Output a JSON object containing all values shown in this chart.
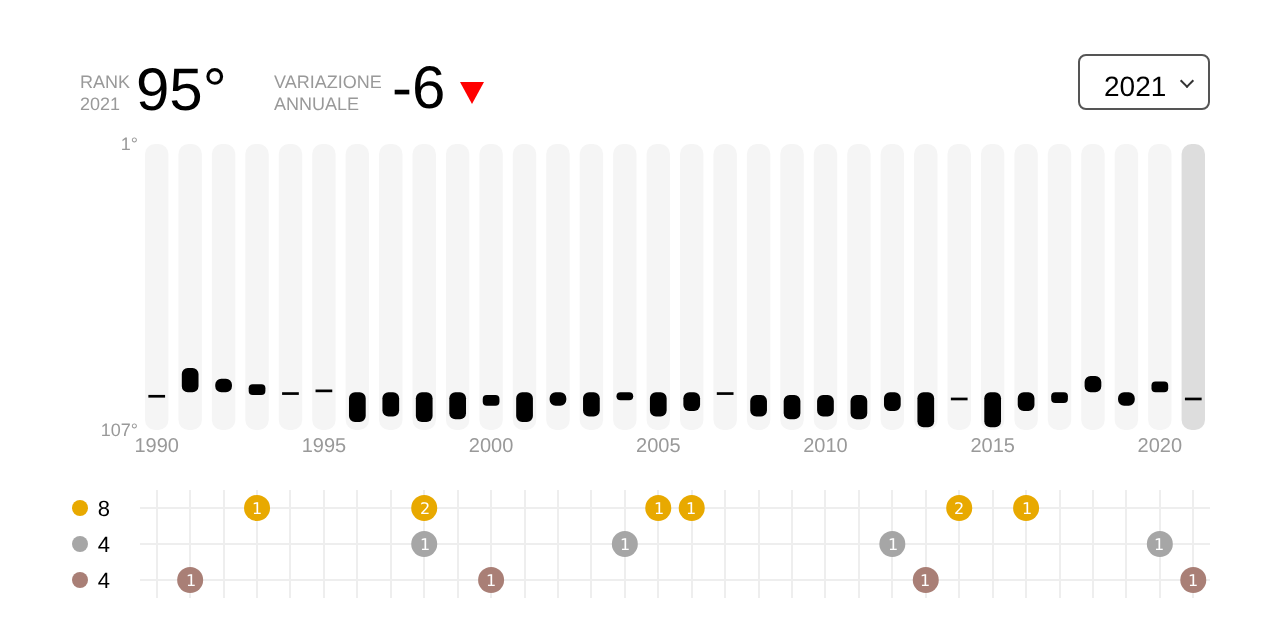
{
  "chart_data": [
    {
      "type": "bar",
      "annotations": [
        "RANK 2021",
        "95°",
        "VARIAZIONE ANNUALE",
        "-6",
        "2021"
      ],
      "x": [
        1990,
        1991,
        1992,
        1993,
        1994,
        1995,
        1996,
        1997,
        1998,
        1999,
        2000,
        2001,
        2002,
        2003,
        2004,
        2005,
        2006,
        2007,
        2008,
        2009,
        2010,
        2011,
        2012,
        2013,
        2014,
        2015,
        2016,
        2017,
        2018,
        2019,
        2020,
        2021
      ],
      "series": [
        {
          "colors": [
            "#f5f5f5",
            "#f5f5f5",
            "#f5f5f5",
            "#f5f5f5",
            "#f5f5f5",
            "#f5f5f5",
            "#f5f5f5",
            "#f5f5f5",
            "#f5f5f5",
            "#f5f5f5",
            "#f5f5f5",
            "#f5f5f5",
            "#f5f5f5",
            "#f5f5f5",
            "#f5f5f5",
            "#f5f5f5",
            "#f5f5f5",
            "#f5f5f5",
            "#f5f5f5",
            "#f5f5f5",
            "#f5f5f5",
            "#f5f5f5",
            "#f5f5f5",
            "#f5f5f5",
            "#f5f5f5",
            "#f5f5f5",
            "#f5f5f5",
            "#f5f5f5",
            "#f5f5f5",
            "#f5f5f5",
            "#f5f5f5",
            "#dddddd"
          ],
          "base": [
            1,
            1,
            1,
            1,
            1,
            1,
            1,
            1,
            1,
            1,
            1,
            1,
            1,
            1,
            1,
            1,
            1,
            1,
            1,
            1,
            1,
            1,
            1,
            1,
            1,
            1,
            1,
            1,
            1,
            1,
            1,
            1
          ],
          "values": [
            106,
            106,
            106,
            106,
            106,
            106,
            106,
            106,
            106,
            106,
            106,
            106,
            106,
            106,
            106,
            106,
            106,
            106,
            106,
            106,
            106,
            106,
            106,
            106,
            106,
            106,
            106,
            106,
            106,
            106,
            106,
            106
          ]
        },
        {
          "color": "#000000",
          "base": [
            94,
            84,
            88,
            90,
            93,
            92,
            93,
            93,
            93,
            93,
            94,
            93,
            93,
            93,
            93,
            93,
            93,
            93,
            94,
            94,
            94,
            94,
            93,
            93,
            95,
            93,
            93,
            93,
            87,
            93,
            89,
            95
          ],
          "values": [
            1,
            9,
            5,
            4,
            1,
            1,
            11,
            9,
            11,
            10,
            4,
            11,
            5,
            9,
            3,
            9,
            7,
            1,
            8,
            9,
            8,
            9,
            7,
            13,
            1,
            13,
            7,
            4,
            6,
            5,
            4,
            1
          ]
        }
      ],
      "xlim": [
        1989.5,
        2021.5
      ],
      "xticks": [
        1990,
        1995,
        2000,
        2005,
        2010,
        2015,
        2020
      ],
      "ylim": [
        107,
        1
      ],
      "yticks": [
        {
          "value": 1,
          "label": "1°"
        },
        {
          "value": 107,
          "label": "107°"
        }
      ]
    },
    {
      "type": "heatmap",
      "data_labels": true,
      "grid": true,
      "tick_labels": "y",
      "categories": [
        null,
        null,
        null,
        null,
        null,
        null,
        null,
        null,
        null,
        null,
        null,
        null,
        null,
        null,
        null,
        null,
        null,
        null,
        null,
        null,
        null,
        null,
        null,
        null,
        null,
        null,
        null,
        null,
        null,
        null,
        null,
        null
      ],
      "y_categories": [
        "8",
        "4",
        "4"
      ],
      "colors": [
        "#e8a900",
        "#a6a6a6",
        "#a97f76"
      ],
      "cells": [
        [
          null,
          null,
          null,
          1,
          null,
          null,
          null,
          null,
          2,
          null,
          null,
          null,
          null,
          null,
          null,
          1,
          1,
          null,
          null,
          null,
          null,
          null,
          null,
          null,
          2,
          null,
          1,
          null,
          null,
          null,
          null,
          null
        ],
        [
          null,
          null,
          null,
          null,
          null,
          null,
          null,
          null,
          1,
          null,
          null,
          null,
          null,
          null,
          1,
          null,
          null,
          null,
          null,
          null,
          null,
          null,
          1,
          null,
          null,
          null,
          null,
          null,
          null,
          null,
          1,
          null
        ],
        [
          null,
          1,
          null,
          null,
          null,
          null,
          null,
          null,
          null,
          null,
          1,
          null,
          null,
          null,
          null,
          null,
          null,
          null,
          null,
          null,
          null,
          null,
          null,
          1,
          null,
          null,
          null,
          null,
          null,
          null,
          null,
          1
        ]
      ]
    }
  ]
}
